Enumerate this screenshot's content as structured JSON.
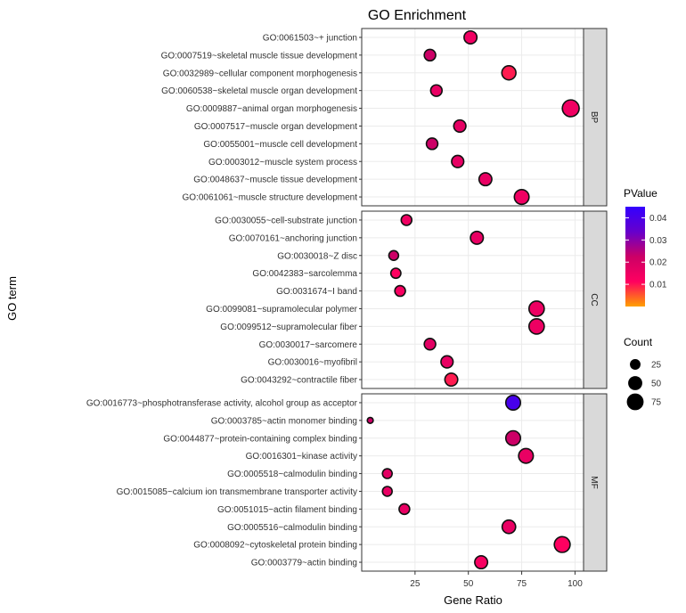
{
  "chart_data": {
    "type": "scatter",
    "title": "GO Enrichment",
    "xlabel": "Gene Ratio",
    "ylabel": "GO term",
    "xlim": [
      0,
      104
    ],
    "xticks": [
      25,
      50,
      75,
      100
    ],
    "xtick_labels": [
      "25",
      "50",
      "75",
      "100"
    ],
    "facets": [
      {
        "label": "BP",
        "terms": [
          {
            "term": "GO:0061061~muscle structure development",
            "x": 75,
            "p": 0.01,
            "count": 55
          },
          {
            "term": "GO:0048637~muscle tissue development",
            "x": 58,
            "p": 0.012,
            "count": 40
          },
          {
            "term": "GO:0003012~muscle system process",
            "x": 45,
            "p": 0.013,
            "count": 35
          },
          {
            "term": "GO:0055001~muscle cell development",
            "x": 33,
            "p": 0.02,
            "count": 30
          },
          {
            "term": "GO:0007517~muscle organ development",
            "x": 46,
            "p": 0.013,
            "count": 35
          },
          {
            "term": "GO:0009887~animal organ morphogenesis",
            "x": 98,
            "p": 0.01,
            "count": 75
          },
          {
            "term": "GO:0060538~skeletal muscle organ development",
            "x": 35,
            "p": 0.012,
            "count": 30
          },
          {
            "term": "GO:0032989~cellular component morphogenesis",
            "x": 69,
            "p": 0.005,
            "count": 50
          },
          {
            "term": "GO:0007519~skeletal muscle tissue development",
            "x": 32,
            "p": 0.02,
            "count": 30
          },
          {
            "term": "GO:0061503~+ junction",
            "x": 51,
            "p": 0.01,
            "count": 40
          }
        ]
      },
      {
        "label": "CC",
        "terms": [
          {
            "term": "GO:0043292~contractile fiber",
            "x": 42,
            "p": 0.005,
            "count": 40
          },
          {
            "term": "GO:0030016~myofibril",
            "x": 40,
            "p": 0.012,
            "count": 35
          },
          {
            "term": "GO:0030017~sarcomere",
            "x": 32,
            "p": 0.014,
            "count": 30
          },
          {
            "term": "GO:0099512~supramolecular fiber",
            "x": 82,
            "p": 0.011,
            "count": 60
          },
          {
            "term": "GO:0099081~supramolecular polymer",
            "x": 82,
            "p": 0.011,
            "count": 60
          },
          {
            "term": "GO:0031674~I band",
            "x": 18,
            "p": 0.008,
            "count": 25
          },
          {
            "term": "GO:0042383~sarcolemma",
            "x": 16,
            "p": 0.006,
            "count": 22
          },
          {
            "term": "GO:0030018~Z disc",
            "x": 15,
            "p": 0.02,
            "count": 20
          },
          {
            "term": "GO:0070161~anchoring junction",
            "x": 54,
            "p": 0.012,
            "count": 40
          },
          {
            "term": "GO:0030055~cell-substrate junction",
            "x": 21,
            "p": 0.01,
            "count": 25
          }
        ]
      },
      {
        "label": "MF",
        "terms": [
          {
            "term": "GO:0003779~actin binding",
            "x": 56,
            "p": 0.008,
            "count": 40
          },
          {
            "term": "GO:0008092~cytoskeletal protein binding",
            "x": 94,
            "p": 0.006,
            "count": 65
          },
          {
            "term": "GO:0005516~calmodulin binding",
            "x": 69,
            "p": 0.012,
            "count": 45
          },
          {
            "term": "GO:0051015~actin filament binding",
            "x": 20,
            "p": 0.012,
            "count": 25
          },
          {
            "term": "GO:0015085~calcium ion transmembrane transporter activity",
            "x": 12,
            "p": 0.012,
            "count": 20
          },
          {
            "term": "GO:0005518~calmodulin binding",
            "x": 12,
            "p": 0.014,
            "count": 20
          },
          {
            "term": "GO:0016301~kinase activity",
            "x": 77,
            "p": 0.012,
            "count": 55
          },
          {
            "term": "GO:0044877~protein-containing complex binding",
            "x": 71,
            "p": 0.02,
            "count": 55
          },
          {
            "term": "GO:0003785~actin monomer binding",
            "x": 4,
            "p": 0.02,
            "count": 5
          },
          {
            "term": "GO:0016773~phosphotransferase activity, alcohol group as acceptor",
            "x": 71,
            "p": 0.04,
            "count": 55
          }
        ]
      }
    ],
    "color_legend": {
      "title": "PValue",
      "range": [
        0.0,
        0.045
      ],
      "ticks": [
        0.04,
        0.03,
        0.02,
        0.01
      ],
      "tick_labels": [
        "0.04",
        "0.03",
        "0.02",
        "0.01"
      ],
      "colors": [
        "#ffa000",
        "#ff0060",
        "#cc0066",
        "#6600cc",
        "#3300ff"
      ]
    },
    "size_legend": {
      "title": "Count",
      "values": [
        25,
        50,
        75
      ],
      "labels": [
        "25",
        "50",
        "75"
      ]
    },
    "grid": true,
    "legend_position": "right"
  }
}
